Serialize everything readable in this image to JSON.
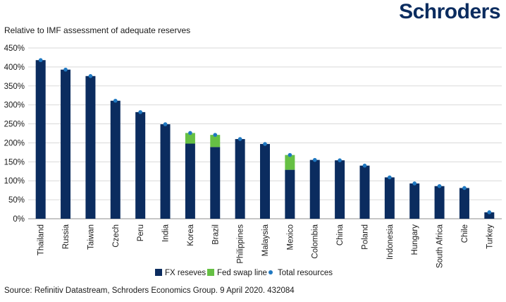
{
  "brand": {
    "name": "Schroders"
  },
  "chart_data": {
    "type": "bar",
    "title": "",
    "subtitle": "Relative to IMF assessment of adequate reserves",
    "ylabel": "",
    "xlabel": "",
    "ylim": [
      0,
      450
    ],
    "yticks": [
      "0%",
      "50%",
      "100%",
      "150%",
      "200%",
      "250%",
      "300%",
      "350%",
      "400%",
      "450%"
    ],
    "ytick_values": [
      0,
      50,
      100,
      150,
      200,
      250,
      300,
      350,
      400,
      450
    ],
    "categories": [
      "Thailand",
      "Russia",
      "Taiwan",
      "Czech",
      "Peru",
      "India",
      "Korea",
      "Brazil",
      "Philippines",
      "Malaysia",
      "Mexico",
      "Colombia",
      "China",
      "Poland",
      "Indonesia",
      "Hungary",
      "South Africa",
      "Chile",
      "Turkey"
    ],
    "series": [
      {
        "name": "FX reseves",
        "kind": "stacked-bar",
        "color": "#0b2c5f",
        "values": [
          418,
          393,
          376,
          311,
          281,
          249,
          198,
          189,
          210,
          197,
          129,
          155,
          154,
          140,
          109,
          93,
          86,
          81,
          17
        ]
      },
      {
        "name": "Fed swap line",
        "kind": "stacked-bar",
        "color": "#66c044",
        "values": [
          0,
          0,
          0,
          0,
          0,
          0,
          28,
          32,
          0,
          0,
          39,
          0,
          0,
          0,
          0,
          0,
          0,
          0,
          0
        ]
      },
      {
        "name": "Total resources",
        "kind": "dot",
        "color": "#1f78c1",
        "values": [
          418,
          393,
          376,
          311,
          281,
          249,
          226,
          221,
          210,
          197,
          168,
          155,
          154,
          140,
          109,
          93,
          86,
          81,
          17
        ]
      }
    ],
    "legend": "bottom-center"
  },
  "source": "Source: Refinitiv Datastream, Schroders Economics Group. 9 April 2020. 432084"
}
